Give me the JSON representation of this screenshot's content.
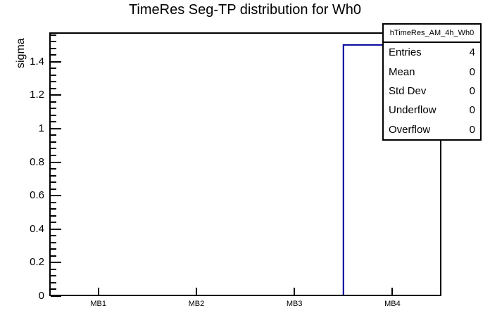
{
  "chart_data": {
    "type": "bar",
    "style": "root-step-histogram",
    "title": "TimeRes Seg-TP distribution for Wh0",
    "ylabel": "sigma",
    "xlabel": "",
    "categories": [
      "MB1",
      "MB2",
      "MB3",
      "MB4"
    ],
    "values": [
      0,
      0,
      0,
      1.5
    ],
    "ylim": [
      0,
      1.575
    ],
    "y_major_step": 0.2,
    "y_minor_step": 0.04,
    "y_tick_labels": [
      "0",
      "0.2",
      "0.4",
      "0.6",
      "0.8",
      "1",
      "1.2",
      "1.4"
    ],
    "grid": false,
    "legend": false,
    "line_color": "#000099",
    "frame_color": "#000000",
    "background_color": "#ffffff",
    "stats_box": {
      "title": "hTimeRes_AM_4h_Wh0",
      "rows": [
        {
          "label": "Entries",
          "value": "4"
        },
        {
          "label": "Mean",
          "value": "0"
        },
        {
          "label": "Std Dev",
          "value": "0"
        },
        {
          "label": "Underflow",
          "value": "0"
        },
        {
          "label": "Overflow",
          "value": "0"
        }
      ]
    }
  }
}
